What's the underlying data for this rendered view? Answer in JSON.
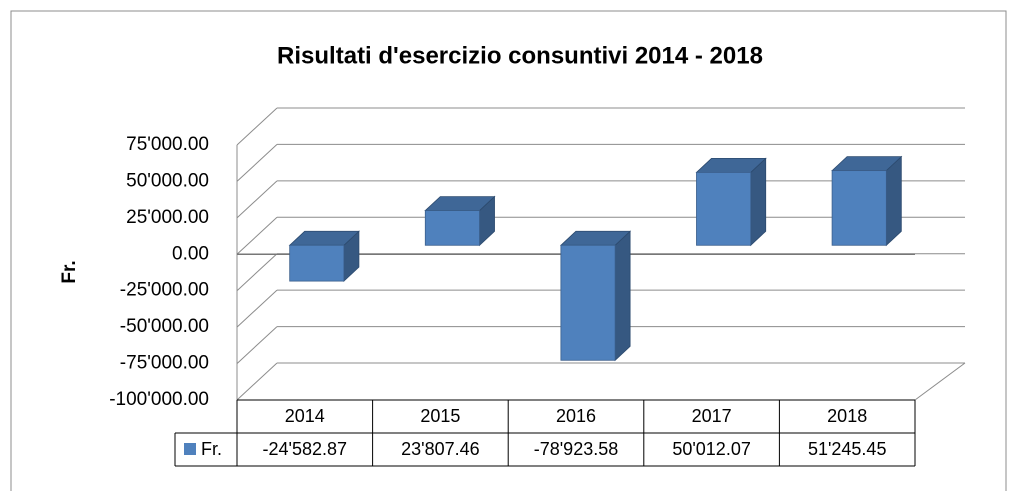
{
  "chart_data": {
    "type": "bar3d",
    "title": "Risultati d'esercizio consuntivi 2014 - 2018",
    "y_axis_label": "Fr.",
    "categories": [
      "2014",
      "2015",
      "2016",
      "2017",
      "2018"
    ],
    "series": [
      {
        "name": "Fr.",
        "color": "#4f81bd",
        "values": [
          -24582.87,
          23807.46,
          -78923.58,
          50012.07,
          51245.45
        ],
        "value_labels": [
          "-24'582.87",
          "23'807.46",
          "-78'923.58",
          "50'012.07",
          "51'245.45"
        ]
      }
    ],
    "ylim": [
      -100000,
      75000
    ],
    "yticks": [
      {
        "value": -100000,
        "label": "-100'000.00"
      },
      {
        "value": -75000,
        "label": "-75'000.00"
      },
      {
        "value": -50000,
        "label": "-50'000.00"
      },
      {
        "value": -25000,
        "label": "-25'000.00"
      },
      {
        "value": 0,
        "label": "0.00"
      },
      {
        "value": 25000,
        "label": "25'000.00"
      },
      {
        "value": 50000,
        "label": "50'000.00"
      },
      {
        "value": 75000,
        "label": "75'000.00"
      }
    ],
    "grid": true,
    "data_table": true
  }
}
